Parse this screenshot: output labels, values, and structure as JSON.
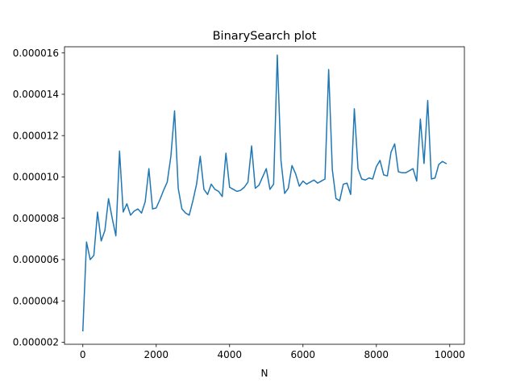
{
  "chart_data": {
    "type": "line",
    "title": "BinarySearch plot",
    "xlabel": "N",
    "ylabel": "",
    "xlim": [
      -500,
      10400
    ],
    "ylim": [
      1.9e-06,
      1.63e-05
    ],
    "xticks": [
      0,
      2000,
      4000,
      6000,
      8000,
      10000
    ],
    "xtick_labels": [
      "0",
      "2000",
      "4000",
      "6000",
      "8000",
      "10000"
    ],
    "yticks": [
      2e-06,
      4e-06,
      6e-06,
      8e-06,
      1e-05,
      1.2e-05,
      1.4e-05,
      1.6e-05
    ],
    "ytick_labels": [
      "0.000002",
      "0.000004",
      "0.000006",
      "0.000008",
      "0.000010",
      "0.000012",
      "0.000014",
      "0.000016"
    ],
    "grid": false,
    "color": "#1f77b4",
    "series": [
      {
        "x": [
          0,
          100,
          200,
          300,
          400,
          500,
          600,
          700,
          800,
          900,
          1000,
          1100,
          1200,
          1300,
          1400,
          1500,
          1600,
          1700,
          1800,
          1900,
          2000,
          2100,
          2200,
          2300,
          2400,
          2500,
          2600,
          2700,
          2800,
          2900,
          3000,
          3100,
          3200,
          3300,
          3400,
          3500,
          3600,
          3700,
          3800,
          3900,
          4000,
          4100,
          4200,
          4300,
          4400,
          4500,
          4600,
          4700,
          4800,
          4900,
          5000,
          5100,
          5200,
          5300,
          5400,
          5500,
          5600,
          5700,
          5800,
          5900,
          6000,
          6100,
          6200,
          6300,
          6400,
          6500,
          6600,
          6700,
          6800,
          6900,
          7000,
          7100,
          7200,
          7300,
          7400,
          7500,
          7600,
          7700,
          7800,
          7900,
          8000,
          8100,
          8200,
          8300,
          8400,
          8500,
          8600,
          8700,
          8800,
          8900,
          9000,
          9100,
          9200,
          9300,
          9400,
          9500,
          9600,
          9700,
          9800,
          9900
        ],
        "values": [
          2.55e-06,
          6.85e-06,
          6e-06,
          6.2e-06,
          8.3e-06,
          6.9e-06,
          7.4e-06,
          8.95e-06,
          8e-06,
          7.15e-06,
          1.125e-05,
          8.3e-06,
          8.7e-06,
          8.15e-06,
          8.35e-06,
          8.45e-06,
          8.25e-06,
          8.8e-06,
          1.04e-05,
          8.45e-06,
          8.5e-06,
          8.9e-06,
          9.35e-06,
          9.75e-06,
          1.1e-05,
          1.32e-05,
          9.45e-06,
          8.45e-06,
          8.25e-06,
          8.15e-06,
          8.85e-06,
          9.65e-06,
          1.1e-05,
          9.4e-06,
          9.15e-06,
          9.65e-06,
          9.4e-06,
          9.3e-06,
          9.05e-06,
          1.115e-05,
          9.5e-06,
          9.4e-06,
          9.3e-06,
          9.35e-06,
          9.5e-06,
          9.75e-06,
          1.15e-05,
          9.45e-06,
          9.6e-06,
          1e-05,
          1.04e-05,
          9.4e-06,
          9.65e-06,
          1.59e-05,
          1.08e-05,
          9.2e-06,
          9.45e-06,
          1.055e-05,
          1.015e-05,
          9.55e-06,
          9.8e-06,
          9.65e-06,
          9.75e-06,
          9.85e-06,
          9.7e-06,
          9.8e-06,
          9.9e-06,
          1.52e-05,
          1.035e-05,
          8.95e-06,
          8.85e-06,
          9.65e-06,
          9.7e-06,
          9.15e-06,
          1.33e-05,
          1.04e-05,
          9.9e-06,
          9.85e-06,
          9.95e-06,
          9.9e-06,
          1.05e-05,
          1.08e-05,
          1.01e-05,
          1.005e-05,
          1.12e-05,
          1.16e-05,
          1.025e-05,
          1.02e-05,
          1.02e-05,
          1.03e-05,
          1.04e-05,
          9.8e-06,
          1.28e-05,
          1.065e-05,
          1.37e-05,
          9.9e-06,
          9.95e-06,
          1.06e-05,
          1.075e-05,
          1.065e-05
        ]
      }
    ]
  }
}
